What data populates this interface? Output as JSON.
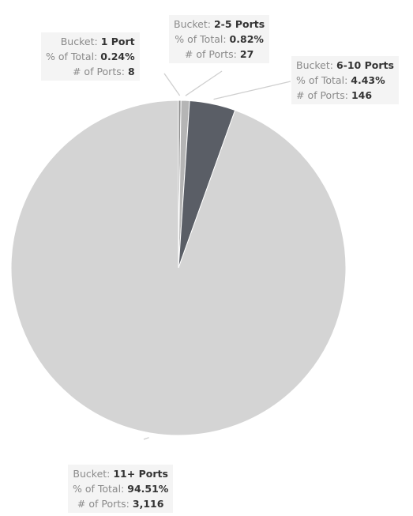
{
  "chart_data": {
    "type": "pie",
    "field_labels": {
      "bucket": "Bucket:",
      "pct": "% of Total:",
      "count": "# of Ports:"
    },
    "slices": [
      {
        "bucket": "1 Port",
        "pct_label": "0.24%",
        "pct": 0.24,
        "count_label": "8",
        "count": 8,
        "color": "#8f8f8f"
      },
      {
        "bucket": "2-5 Ports",
        "pct_label": "0.82%",
        "pct": 0.82,
        "count_label": "27",
        "count": 27,
        "color": "#b5b5b5"
      },
      {
        "bucket": "6-10 Ports",
        "pct_label": "4.43%",
        "pct": 4.43,
        "count_label": "146",
        "count": 146,
        "color": "#5a5e66"
      },
      {
        "bucket": "11+ Ports",
        "pct_label": "94.51%",
        "pct": 94.51,
        "count_label": "3,116",
        "count": 3116,
        "color": "#d4d4d4"
      }
    ]
  }
}
